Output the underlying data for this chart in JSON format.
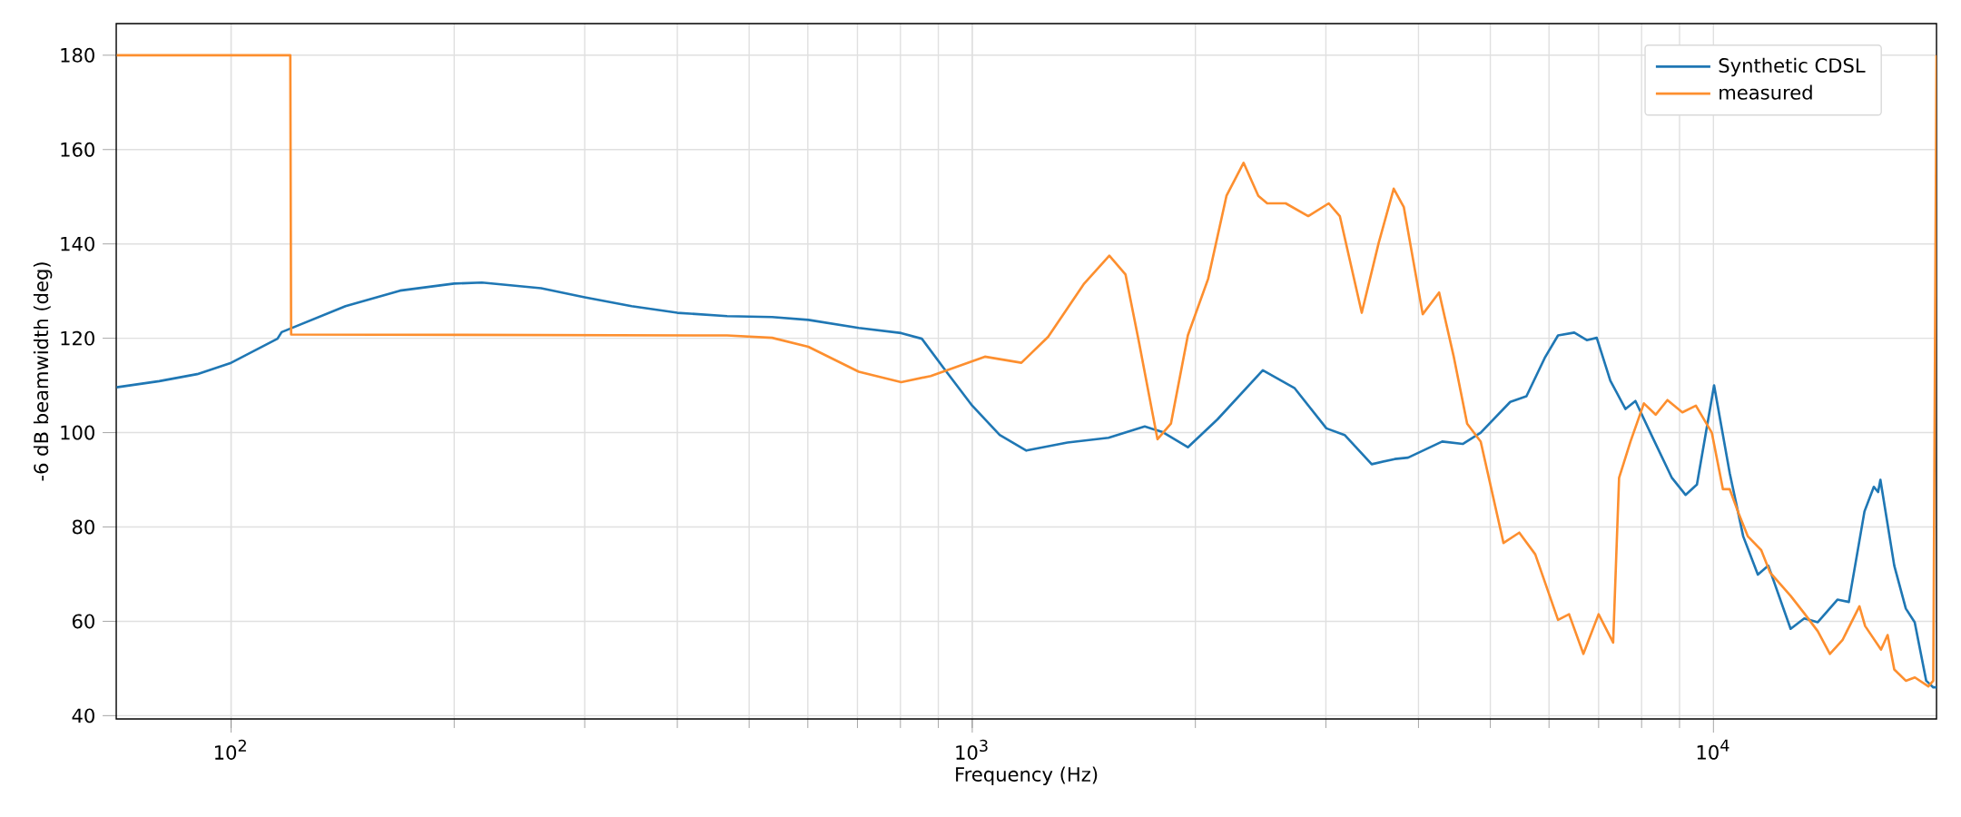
{
  "chart_data": {
    "type": "line",
    "xlabel": "Frequency (Hz)",
    "ylabel": "-6 dB beamwidth (deg)",
    "log": "x",
    "grid": true,
    "legend": "top right",
    "xlim": [
      70,
      20000
    ],
    "ylim": [
      39.3,
      186.7
    ],
    "xticks": [
      {
        "value": 100,
        "label": "10$^{2}$"
      },
      {
        "value": 1000,
        "label": "10$^{3}$"
      },
      {
        "value": 10000,
        "label": "10$^{4}$"
      }
    ],
    "yticks": [
      40,
      60,
      80,
      100,
      120,
      140,
      160,
      180
    ],
    "series": [
      {
        "name": "Synthetic CDSL",
        "color": "#1f77b4",
        "x": [
          70.1,
          80,
          90,
          100,
          115.5,
          117,
          142.7,
          169,
          200,
          218,
          262,
          300,
          347,
          400,
          467,
          537,
          601,
          703,
          802,
          855,
          918,
          1000,
          1089,
          1183,
          1344,
          1527,
          1709,
          1808,
          1954,
          2142,
          2466,
          2723,
          3005,
          3180,
          3459,
          3715,
          3873,
          4306,
          4589,
          4853,
          5319,
          5594,
          5920,
          6171,
          6490,
          6748,
          6960,
          7260,
          7610,
          7850,
          8300,
          8790,
          9170,
          9500,
          10020,
          10520,
          10970,
          11480,
          11860,
          12710,
          13260,
          13830,
          14700,
          15230,
          15990,
          16460,
          16680,
          16800,
          17540,
          18180,
          18690,
          19370,
          19800,
          20000
        ],
        "values": [
          109.6,
          110.9,
          112.4,
          114.8,
          119.9,
          121.3,
          126.8,
          130.1,
          131.6,
          131.8,
          130.6,
          128.7,
          126.8,
          125.4,
          124.7,
          124.5,
          123.9,
          122.2,
          121.1,
          119.9,
          113.4,
          105.7,
          99.5,
          96.2,
          97.9,
          98.9,
          101.3,
          100.1,
          96.9,
          102.8,
          113.2,
          109.4,
          100.9,
          99.5,
          93.3,
          94.4,
          94.7,
          98.1,
          97.6,
          100.0,
          106.5,
          107.7,
          115.8,
          120.6,
          121.2,
          119.6,
          120.1,
          111.0,
          105.0,
          106.7,
          98.6,
          90.4,
          86.8,
          89.0,
          110.0,
          91.4,
          78.0,
          69.9,
          71.8,
          58.4,
          60.6,
          59.8,
          64.6,
          64.1,
          83.3,
          88.5,
          87.4,
          90.0,
          71.8,
          62.7,
          59.8,
          47.4,
          46.0,
          46.0
        ]
      },
      {
        "name": "measured",
        "color": "#fd8f2f",
        "x": [
          70.1,
          120.2,
          120.5,
          429,
          467,
          537,
          601,
          703,
          802,
          879,
          1040,
          1165,
          1266,
          1416,
          1531,
          1610,
          1679,
          1778,
          1854,
          1954,
          2081,
          2203,
          2323,
          2432,
          2500,
          2648,
          2840,
          3027,
          3133,
          3354,
          3535,
          3704,
          3822,
          4053,
          4265,
          4460,
          4653,
          4853,
          5209,
          5471,
          5749,
          6171,
          6386,
          6677,
          7000,
          7324,
          7460,
          7730,
          8057,
          8357,
          8669,
          9080,
          9470,
          9950,
          10300,
          10520,
          10820,
          11130,
          11600,
          11930,
          12710,
          13260,
          13830,
          14360,
          14930,
          15740,
          16020,
          16830,
          17180,
          17540,
          18180,
          18700,
          19500,
          19800,
          20000
        ],
        "values": [
          180,
          180,
          120.8,
          120.6,
          120.6,
          120.1,
          118.2,
          112.9,
          110.7,
          112.0,
          116.1,
          114.8,
          120.3,
          131.6,
          137.5,
          133.5,
          119.1,
          98.6,
          101.9,
          120.6,
          132.6,
          150.2,
          157.2,
          150.2,
          148.6,
          148.6,
          145.9,
          148.6,
          145.9,
          125.4,
          140.2,
          151.7,
          147.8,
          125.1,
          129.7,
          116.3,
          101.9,
          98.1,
          76.6,
          78.8,
          74.2,
          60.3,
          61.5,
          53.1,
          61.5,
          55.5,
          90.4,
          98.1,
          106.2,
          103.8,
          106.9,
          104.3,
          105.7,
          100.0,
          88.0,
          88.0,
          82.8,
          78.0,
          75.1,
          70.3,
          65.4,
          61.7,
          57.9,
          53.1,
          56.0,
          63.2,
          59.0,
          54.0,
          57.1,
          49.8,
          47.4,
          48.1,
          46.2,
          47.4,
          180
        ]
      }
    ]
  }
}
